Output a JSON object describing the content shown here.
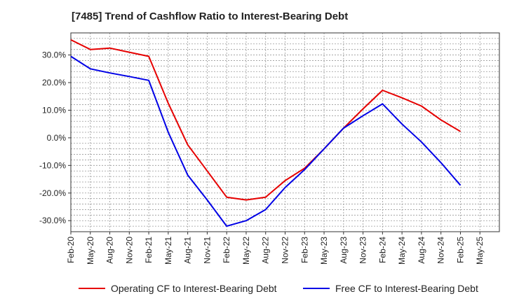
{
  "chart_data": {
    "type": "line",
    "title": "[7485]  Trend of Cashflow Ratio to Interest-Bearing Debt",
    "x": [
      "Feb-20",
      "May-20",
      "Aug-20",
      "Nov-20",
      "Feb-21",
      "May-21",
      "Aug-21",
      "Nov-21",
      "Feb-22",
      "May-22",
      "Aug-22",
      "Nov-22",
      "Feb-23",
      "May-23",
      "Aug-23",
      "Nov-23",
      "Feb-24",
      "May-24",
      "Aug-24",
      "Nov-24",
      "Feb-25",
      "May-25"
    ],
    "ylim": [
      -34,
      38
    ],
    "y_ticks": [
      30,
      20,
      10,
      0,
      -10,
      -20,
      -30
    ],
    "y_tick_labels": [
      "30.0%",
      "20.0%",
      "10.0%",
      "0.0%",
      "-10.0%",
      "-20.0%",
      "-30.0%"
    ],
    "grid": true,
    "legend_position": "bottom",
    "series": [
      {
        "name": "Operating CF to Interest-Bearing Debt",
        "color": "#e60000",
        "values": [
          35.5,
          32.0,
          32.5,
          31.0,
          29.5,
          12.5,
          -2.5,
          -12.0,
          -21.5,
          -22.5,
          -21.5,
          -15.5,
          -11.0,
          -4.0,
          3.5,
          10.5,
          17.2,
          14.5,
          11.5,
          6.5,
          2.3,
          null
        ]
      },
      {
        "name": "Free CF to Interest-Bearing Debt",
        "color": "#0000e6",
        "values": [
          29.5,
          25.0,
          23.5,
          22.2,
          20.8,
          2.0,
          -13.5,
          -22.5,
          -32.0,
          -30.0,
          -26.0,
          -18.0,
          -11.5,
          -4.0,
          3.5,
          8.0,
          12.3,
          5.0,
          -1.5,
          -9.0,
          -17.2,
          null
        ]
      }
    ]
  }
}
